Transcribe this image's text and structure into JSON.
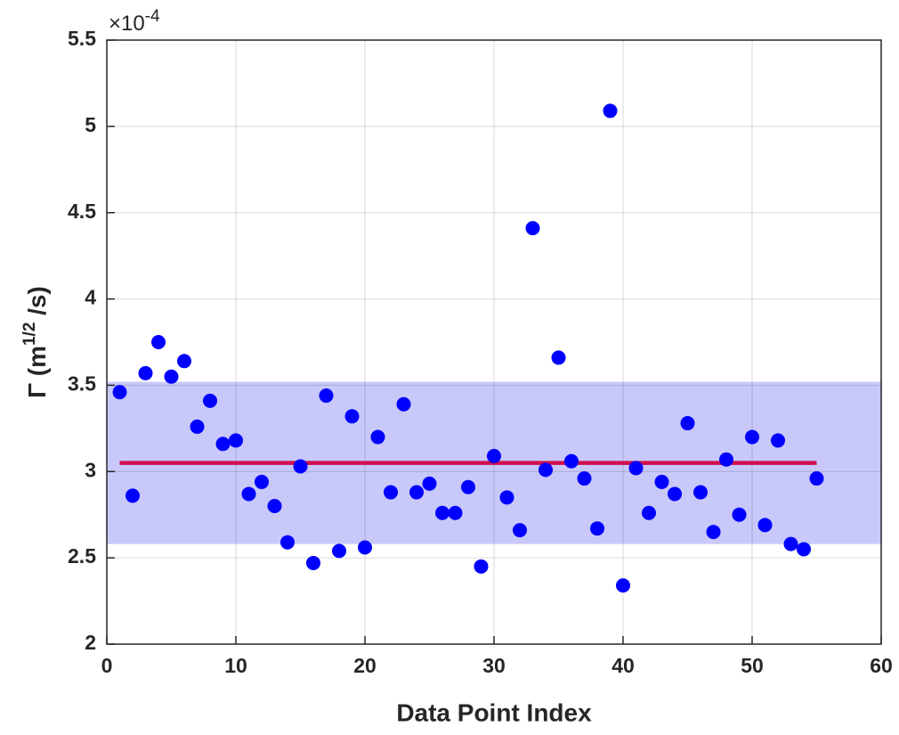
{
  "chart_data": {
    "type": "scatter",
    "xlabel": "Data Point Index",
    "ylabel": [
      "Γ (m",
      "1/2",
      " /s)"
    ],
    "exponent_label": [
      "×10",
      "-4"
    ],
    "xlim": [
      0,
      60
    ],
    "xticks": [
      0,
      10,
      20,
      30,
      40,
      50,
      60
    ],
    "ylim": [
      2,
      5.5
    ],
    "yticks": [
      2,
      2.5,
      3,
      3.5,
      4,
      4.5,
      5,
      5.5
    ],
    "grid": true,
    "x": [
      1,
      2,
      3,
      4,
      5,
      6,
      7,
      8,
      9,
      10,
      11,
      12,
      13,
      14,
      15,
      16,
      17,
      18,
      19,
      20,
      21,
      22,
      23,
      24,
      25,
      26,
      27,
      28,
      29,
      30,
      31,
      32,
      33,
      34,
      35,
      36,
      37,
      38,
      39,
      40,
      41,
      42,
      43,
      44,
      45,
      46,
      47,
      48,
      49,
      50,
      51,
      52,
      53,
      54,
      55
    ],
    "series": [
      {
        "color": "#0000ff",
        "values": [
          3.46,
          2.86,
          3.57,
          3.75,
          3.55,
          3.64,
          3.26,
          3.41,
          3.16,
          3.18,
          2.87,
          2.94,
          2.8,
          2.59,
          3.03,
          2.47,
          3.44,
          2.54,
          3.32,
          2.56,
          3.2,
          2.88,
          3.39,
          2.88,
          2.93,
          2.76,
          2.76,
          2.91,
          2.45,
          3.09,
          2.85,
          2.66,
          4.41,
          3.01,
          3.66,
          3.06,
          2.96,
          2.67,
          5.09,
          2.34,
          3.02,
          2.76,
          2.94,
          2.87,
          3.28,
          2.88,
          2.65,
          3.07,
          2.75,
          3.2,
          2.69,
          3.18,
          2.58,
          2.55,
          2.96
        ]
      }
    ],
    "mean_line": {
      "value": 3.05,
      "x": [
        1,
        55
      ],
      "color": "#d0104c"
    },
    "band": {
      "range": [
        2.58,
        3.52
      ],
      "color": "#c8c8fa"
    }
  }
}
